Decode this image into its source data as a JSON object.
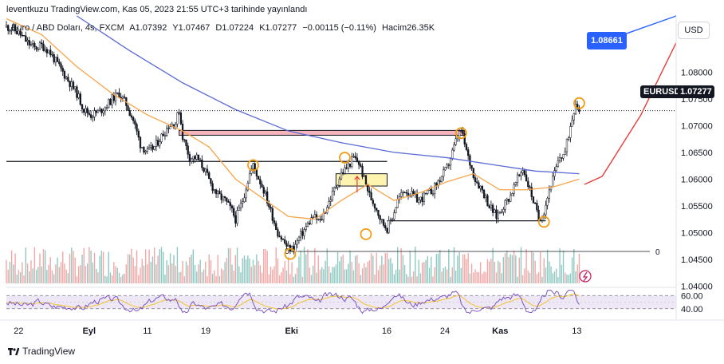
{
  "header": {
    "publish_line": "leventkuzu TradingView.com, Kas 05, 2023 21:55 UTC+3 tarihinde yayınlandı"
  },
  "legend": {
    "symbol_text": "Euro / ABD Doları, 4s, FXCM",
    "open": "A1.07392",
    "high": "Y1.07467",
    "low": "D1.07224",
    "close": "K1.07277",
    "change": "−0.00115 (−0.11%)",
    "volume": "Hacim26.35K"
  },
  "currency_button": "USD",
  "tags": {
    "target_price": "1.08661",
    "symbol": "EURUSD",
    "last_price": "1.07277"
  },
  "footer": {
    "brand": "TradingView"
  },
  "colors": {
    "up": "#131722",
    "down": "#131722",
    "ema_fast": "#f7a54a",
    "ema_slow": "#5b6bd6",
    "resistance_zone": "#f5b5bb",
    "demand_zone": "#fff3b0",
    "marker": "#f39c12",
    "projection": "#e53935",
    "vol_up": "#8fc9c2",
    "vol_down": "#f2a7a7",
    "rsi": "#7e57c2",
    "rsi_ma": "#f4c430",
    "rsi_band": "#ede7f6"
  },
  "chart_data": {
    "type": "candlestick",
    "symbol": "EURUSD",
    "interval": "4s",
    "y_axis": {
      "ticks": [
        "1.08000",
        "1.07500",
        "1.07000",
        "1.06500",
        "1.06000",
        "1.05500",
        "1.05000",
        "1.04500",
        "1.04000"
      ],
      "range": [
        1.0405,
        1.0905
      ]
    },
    "x_axis": {
      "ticks": [
        "22",
        "Eyl",
        "11",
        "19",
        "Eki",
        "16",
        "24",
        "Kas",
        "13"
      ]
    },
    "price_path": [
      [
        0,
        1.0885
      ],
      [
        4,
        1.088
      ],
      [
        8,
        1.087
      ],
      [
        12,
        1.0855
      ],
      [
        16,
        1.0845
      ],
      [
        20,
        1.085
      ],
      [
        24,
        1.084
      ],
      [
        28,
        1.082
      ],
      [
        32,
        1.08
      ],
      [
        36,
        1.078
      ],
      [
        40,
        1.076
      ],
      [
        44,
        1.073
      ],
      [
        48,
        1.072
      ],
      [
        52,
        1.0725
      ],
      [
        56,
        1.0735
      ],
      [
        60,
        1.075
      ],
      [
        64,
        1.076
      ],
      [
        68,
        1.074
      ],
      [
        72,
        1.071
      ],
      [
        76,
        1.0665
      ],
      [
        80,
        1.065
      ],
      [
        84,
        1.066
      ],
      [
        88,
        1.068
      ],
      [
        92,
        1.07
      ],
      [
        96,
        1.0705
      ],
      [
        98,
        1.073
      ],
      [
        100,
        1.068
      ],
      [
        104,
        1.064
      ],
      [
        108,
        1.064
      ],
      [
        112,
        1.062
      ],
      [
        116,
        1.059
      ],
      [
        120,
        1.057
      ],
      [
        124,
        1.056
      ],
      [
        128,
        1.054
      ],
      [
        130,
        1.0525
      ],
      [
        134,
        1.056
      ],
      [
        138,
        1.061
      ],
      [
        140,
        1.0625
      ],
      [
        142,
        1.061
      ],
      [
        146,
        1.058
      ],
      [
        150,
        1.054
      ],
      [
        154,
        1.05
      ],
      [
        158,
        1.048
      ],
      [
        160,
        1.047
      ],
      [
        163,
        1.047
      ],
      [
        166,
        1.049
      ],
      [
        170,
        1.051
      ],
      [
        174,
        1.053
      ],
      [
        178,
        1.052
      ],
      [
        182,
        1.055
      ],
      [
        186,
        1.058
      ],
      [
        190,
        1.061
      ],
      [
        194,
        1.0625
      ],
      [
        197,
        1.064
      ],
      [
        200,
        1.063
      ],
      [
        203,
        1.06
      ],
      [
        206,
        1.057
      ],
      [
        210,
        1.0545
      ],
      [
        213,
        1.052
      ],
      [
        216,
        1.0508
      ],
      [
        219,
        1.053
      ],
      [
        222,
        1.056
      ],
      [
        226,
        1.058
      ],
      [
        230,
        1.057
      ],
      [
        234,
        1.056
      ],
      [
        238,
        1.057
      ],
      [
        242,
        1.058
      ],
      [
        246,
        1.06
      ],
      [
        250,
        1.062
      ],
      [
        253,
        1.065
      ],
      [
        256,
        1.068
      ],
      [
        258,
        1.069
      ],
      [
        262,
        1.064
      ],
      [
        266,
        1.06
      ],
      [
        270,
        1.058
      ],
      [
        274,
        1.055
      ],
      [
        278,
        1.053
      ],
      [
        282,
        1.055
      ],
      [
        286,
        1.057
      ],
      [
        290,
        1.06
      ],
      [
        293,
        1.062
      ],
      [
        296,
        1.059
      ],
      [
        299,
        1.056
      ],
      [
        302,
        1.0525
      ],
      [
        305,
        1.054
      ],
      [
        308,
        1.058
      ],
      [
        311,
        1.061
      ],
      [
        314,
        1.064
      ],
      [
        317,
        1.065
      ],
      [
        320,
        1.07
      ],
      [
        323,
        1.0745
      ],
      [
        325,
        1.0728
      ]
    ],
    "overlays": [
      {
        "kind": "ema-fast",
        "path": [
          [
            0,
            1.09
          ],
          [
            20,
            1.087
          ],
          [
            40,
            1.081
          ],
          [
            60,
            1.076
          ],
          [
            80,
            1.072
          ],
          [
            100,
            1.069
          ],
          [
            115,
            1.066
          ],
          [
            130,
            1.06
          ],
          [
            145,
            1.0565
          ],
          [
            160,
            1.053
          ],
          [
            175,
            1.0525
          ],
          [
            190,
            1.056
          ],
          [
            205,
            1.059
          ],
          [
            220,
            1.056
          ],
          [
            235,
            1.0575
          ],
          [
            250,
            1.0595
          ],
          [
            265,
            1.061
          ],
          [
            280,
            1.058
          ],
          [
            295,
            1.058
          ],
          [
            310,
            1.0585
          ],
          [
            325,
            1.06
          ]
        ]
      },
      {
        "kind": "ema-slow",
        "path": [
          [
            40,
            1.0905
          ],
          [
            70,
            1.084
          ],
          [
            100,
            1.078
          ],
          [
            130,
            1.073
          ],
          [
            160,
            1.069
          ],
          [
            190,
            1.0668
          ],
          [
            220,
            1.065
          ],
          [
            250,
            1.064
          ],
          [
            280,
            1.0625
          ],
          [
            300,
            1.0615
          ],
          [
            325,
            1.061
          ]
        ]
      }
    ],
    "horizontal_lines": [
      {
        "from": 0,
        "to": 216,
        "value": 1.0633
      },
      {
        "from": 216,
        "to": 306,
        "value": 1.0522
      }
    ],
    "zones": [
      {
        "kind": "resistance",
        "from": 98,
        "to": 260,
        "top": 1.0691,
        "bottom": 1.0682
      },
      {
        "kind": "demand",
        "from": 187,
        "to": 216,
        "top": 1.061,
        "bottom": 1.0587
      }
    ],
    "markers": [
      {
        "x": 140,
        "y": 1.0626
      },
      {
        "x": 161,
        "y": 1.046
      },
      {
        "x": 192,
        "y": 1.064
      },
      {
        "x": 204,
        "y": 1.0497
      },
      {
        "x": 258,
        "y": 1.0686
      },
      {
        "x": 305,
        "y": 1.052
      },
      {
        "x": 325,
        "y": 1.0742
      }
    ],
    "projection": [
      [
        328,
        1.059
      ],
      [
        338,
        1.0605
      ],
      [
        360,
        1.072
      ],
      [
        380,
        1.0855
      ]
    ],
    "target_line": [
      [
        350,
        1.087
      ],
      [
        380,
        1.0905
      ]
    ],
    "arrow": {
      "x": 199,
      "from": 1.0575,
      "to": 1.0605
    },
    "volume": {
      "zero_label": "0",
      "max": 1.0
    },
    "rsi": {
      "levels": [
        "60.00",
        "40.00"
      ],
      "range": [
        30,
        70
      ],
      "band": [
        40,
        60
      ]
    }
  }
}
